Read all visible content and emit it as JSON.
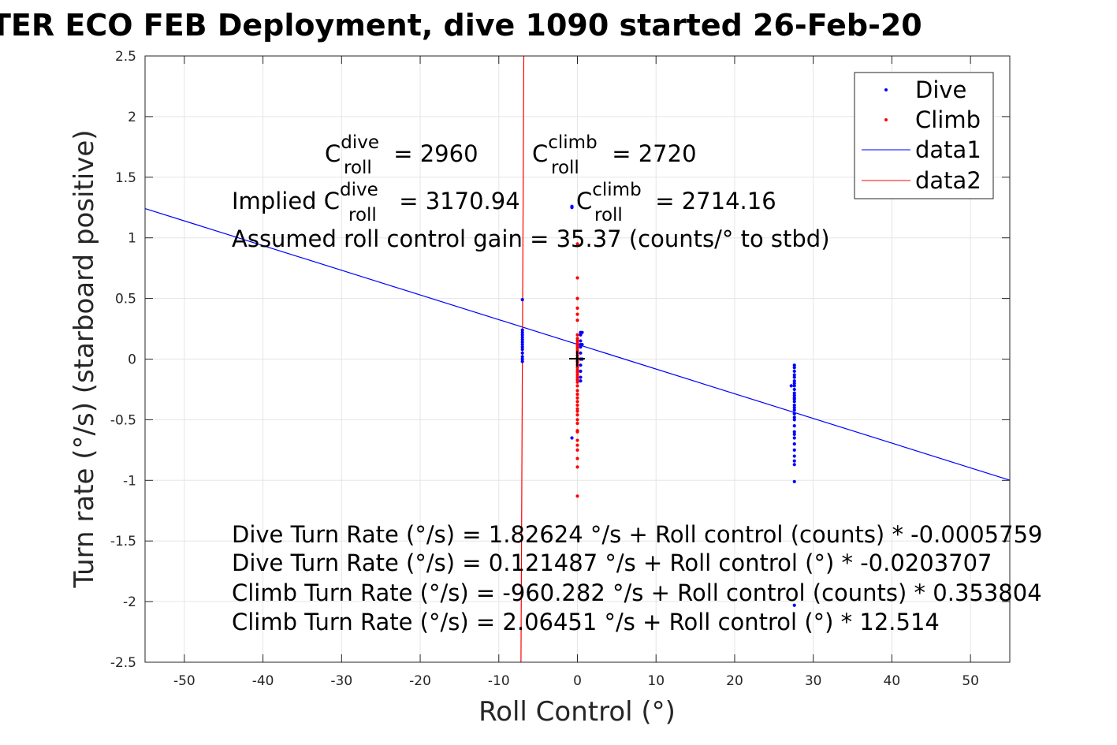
{
  "chart_data": {
    "type": "scatter",
    "title": "TER ECO FEB Deployment, dive 1090 started 26-Feb-20",
    "xlabel": "Roll Control (°)",
    "ylabel": "Turn rate (°/s) (starboard positive)",
    "xlim": [
      -55,
      55
    ],
    "ylim": [
      -2.5,
      2.5
    ],
    "xticks": [
      -50,
      -40,
      -30,
      -20,
      -10,
      0,
      10,
      20,
      30,
      40,
      50
    ],
    "yticks": [
      -2.5,
      -2,
      -1.5,
      -1,
      -0.5,
      0,
      0.5,
      1,
      1.5,
      2,
      2.5
    ],
    "grid": true,
    "legend_placement": "top-right",
    "colors": {
      "dive": "#0000ff",
      "climb": "#ff0000",
      "fit": "#0000ff",
      "fit2": "#ff0000",
      "center": "#000000"
    },
    "series": [
      {
        "name": "Dive",
        "style": "points",
        "color": "#0000ff",
        "x": [
          -7,
          -7,
          -7,
          -7,
          -7,
          -7,
          -7,
          -7,
          -7,
          -7,
          -7,
          -7,
          -7,
          -7,
          -0.7,
          -0.7,
          0.4,
          0.4,
          0.4,
          0.4,
          0.4,
          0.4,
          0.4,
          0.4,
          0.4,
          0.4,
          0.4,
          0.6,
          0.6,
          0.6,
          -0.7,
          27.6,
          27.6,
          27.6,
          27.6,
          27.6,
          27.6,
          27.6,
          27.6,
          27.6,
          27.6,
          27.6,
          27.6,
          27.6,
          27.6,
          27.6,
          27.6,
          27.6,
          27.6,
          27.6,
          27.6,
          27.6,
          27.6,
          27.6,
          27.6,
          27.6,
          27.6,
          27.6,
          27.6,
          27.6,
          27.6,
          27.6,
          27.2,
          27.6
        ],
        "y": [
          0.49,
          0.24,
          0.22,
          0.2,
          0.18,
          0.16,
          0.14,
          0.12,
          0.1,
          0.08,
          0.05,
          0.02,
          0.0,
          -0.02,
          1.25,
          1.26,
          0.22,
          0.2,
          0.15,
          0.12,
          0.1,
          0.05,
          0.0,
          -0.05,
          -0.1,
          -0.15,
          -0.18,
          0.22,
          0.12,
          0.0,
          -0.65,
          -0.05,
          -0.07,
          -0.1,
          -0.13,
          -0.15,
          -0.18,
          -0.2,
          -0.22,
          -0.25,
          -0.28,
          -0.3,
          -0.33,
          -0.35,
          -0.38,
          -0.4,
          -0.42,
          -0.45,
          -0.48,
          -0.5,
          -0.55,
          -0.6,
          -0.62,
          -0.65,
          -0.7,
          -0.75,
          -0.8,
          -0.84,
          -0.87,
          -1.01,
          -2.03,
          -0.45,
          -0.22,
          -0.32
        ]
      },
      {
        "name": "Climb",
        "style": "points",
        "color": "#ff0000",
        "x": [
          0,
          0,
          0,
          0,
          0,
          0,
          0,
          0,
          0,
          0,
          0,
          0,
          0,
          0,
          0,
          0,
          0,
          0,
          0,
          0,
          0,
          0,
          0,
          0,
          0,
          0,
          0,
          0,
          0,
          0,
          0,
          0,
          0,
          0,
          0,
          0,
          0,
          0,
          0,
          0,
          0,
          0,
          0,
          0,
          0,
          0
        ],
        "y": [
          0.95,
          0.67,
          0.5,
          0.42,
          0.37,
          0.32,
          0.2,
          0.17,
          0.15,
          0.13,
          0.11,
          0.09,
          0.07,
          0.05,
          0.03,
          0.01,
          -0.01,
          -0.03,
          -0.05,
          -0.07,
          -0.09,
          -0.11,
          -0.13,
          -0.15,
          -0.17,
          -0.19,
          -0.22,
          -0.26,
          -0.29,
          -0.32,
          -0.35,
          -0.38,
          -0.41,
          -0.43,
          -0.46,
          -0.5,
          -0.53,
          -0.59,
          -0.6,
          -0.67,
          -0.71,
          -0.75,
          -0.82,
          -0.89,
          -1.13,
          -0.02
        ]
      },
      {
        "name": "data1",
        "style": "line",
        "color": "#0000ff",
        "x": [
          -55,
          55
        ],
        "y": [
          1.2418,
          -0.9986
        ]
      },
      {
        "name": "data2",
        "style": "line",
        "color": "#ff0000",
        "x": [
          -6.82,
          -7.18
        ],
        "y": [
          2.5,
          -2.5
        ]
      }
    ],
    "annotations": {
      "c_dive_base": "C",
      "c_dive_sup": "dive",
      "c_dive_sub": "roll",
      "c_dive_val": " = 2960",
      "c_climb_base": "C",
      "c_climb_sup": "climb",
      "c_climb_sub": "roll",
      "c_climb_val": " = 2720",
      "implied_prefix": "Implied C",
      "implied_dive_sup": "dive",
      "implied_dive_sub": "roll",
      "implied_dive_val": " = 3170.94",
      "implied_climb_base": "C",
      "implied_climb_sup": "climb",
      "implied_climb_sub": "roll",
      "implied_climb_val": " = 2714.16",
      "gain": "Assumed roll control gain = 35.37 (counts/° to stbd)",
      "eq1": "Dive Turn Rate (°/s) = 1.82624 °/s + Roll control (counts) * -0.0005759",
      "eq2": "Dive Turn Rate (°/s) = 0.121487 °/s + Roll control (°) * -0.0203707",
      "eq3": "Climb Turn Rate (°/s) = -960.282 °/s + Roll control (counts) * 0.353804",
      "eq4": "Climb Turn Rate (°/s) = 2.06451 °/s + Roll control (°) * 12.514"
    }
  }
}
